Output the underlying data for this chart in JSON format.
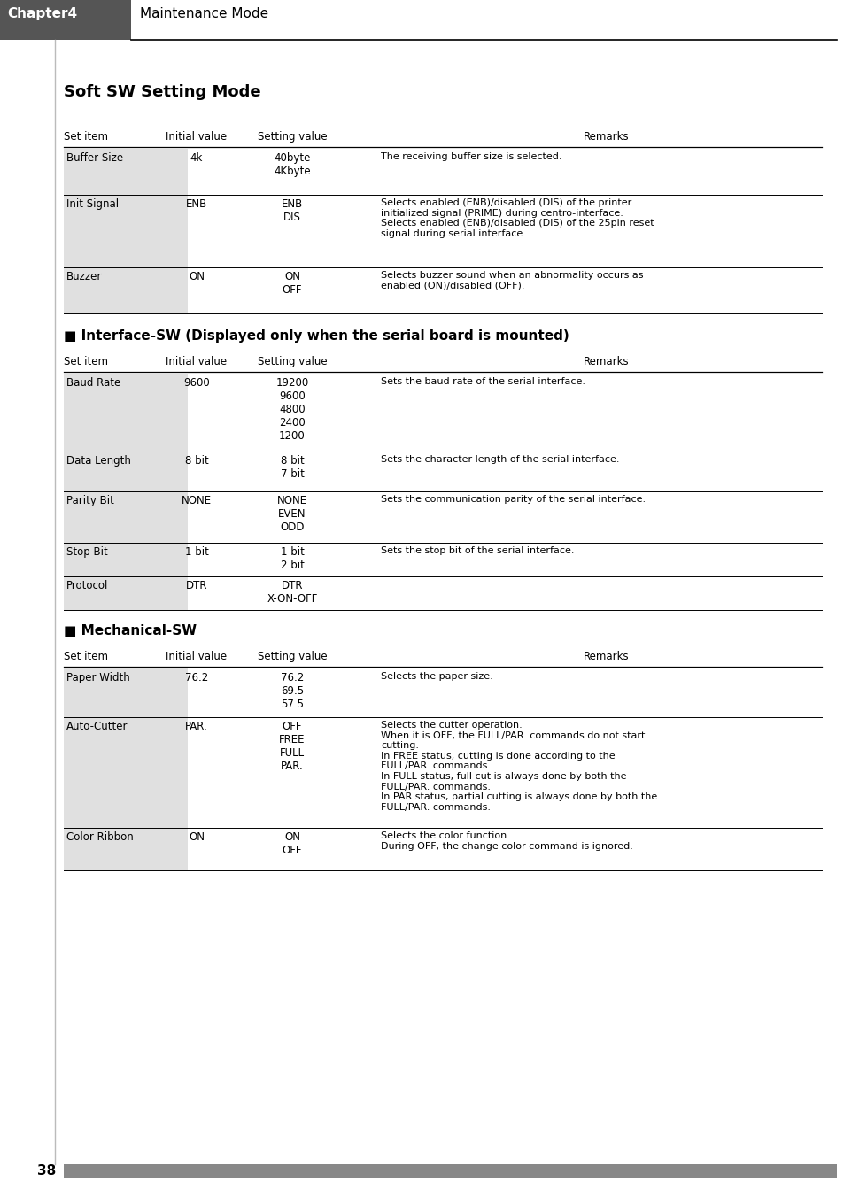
{
  "page_bg": "#ffffff",
  "header_bg": "#555555",
  "header_text_color": "#ffffff",
  "header_chapter": "Chapter4",
  "header_title": "Maintenance Mode",
  "section1_title": "Soft SW Setting Mode",
  "section2_title": "■ Interface-SW (Displayed only when the serial board is mounted)",
  "section3_title": "■ Mechanical-SW",
  "col_headers": [
    "Set item",
    "Initial value",
    "Setting value",
    "Remarks"
  ],
  "table1_rows": [
    {
      "item": "Buffer Size",
      "initial": "4k",
      "setting": "40byte\n4Kbyte",
      "remarks": "The receiving buffer size is selected."
    },
    {
      "item": "Init Signal",
      "initial": "ENB",
      "setting": "ENB\nDIS",
      "remarks": "Selects enabled (ENB)/disabled (DIS) of the printer\ninitialized signal (PRIME) during centro-interface.\nSelects enabled (ENB)/disabled (DIS) of the 25pin reset\nsignal during serial interface."
    },
    {
      "item": "Buzzer",
      "initial": "ON",
      "setting": "ON\nOFF",
      "remarks": "Selects buzzer sound when an abnormality occurs as\nenabled (ON)/disabled (OFF)."
    }
  ],
  "table2_rows": [
    {
      "item": "Baud Rate",
      "initial": "9600",
      "setting": "19200\n9600\n4800\n2400\n1200",
      "remarks": "Sets the baud rate of the serial interface."
    },
    {
      "item": "Data Length",
      "initial": "8 bit",
      "setting": "8 bit\n7 bit",
      "remarks": "Sets the character length of the serial interface."
    },
    {
      "item": "Parity Bit",
      "initial": "NONE",
      "setting": "NONE\nEVEN\nODD",
      "remarks": "Sets the communication parity of the serial interface."
    },
    {
      "item": "Stop Bit",
      "initial": "1 bit",
      "setting": "1 bit\n2 bit",
      "remarks": "Sets the stop bit of the serial interface."
    },
    {
      "item": "Protocol",
      "initial": "DTR",
      "setting": "DTR\nX-ON-OFF",
      "remarks": ""
    }
  ],
  "table3_rows": [
    {
      "item": "Paper Width",
      "initial": "76.2",
      "setting": "76.2\n69.5\n57.5",
      "remarks": "Selects the paper size."
    },
    {
      "item": "Auto-Cutter",
      "initial": "PAR.",
      "setting": "OFF\nFREE\nFULL\nPAR.",
      "remarks": "Selects the cutter operation.\nWhen it is OFF, the FULL/PAR. commands do not start\ncutting.\nIn FREE status, cutting is done according to the\nFULL/PAR. commands.\nIn FULL status, full cut is always done by both the\nFULL/PAR. commands.\nIn PAR status, partial cutting is always done by both the\nFULL/PAR. commands."
    },
    {
      "item": "Color Ribbon",
      "initial": "ON",
      "setting": "ON\nOFF",
      "remarks": "Selects the color function.\nDuring OFF, the change color command is ignored."
    }
  ],
  "footer_text": "38"
}
